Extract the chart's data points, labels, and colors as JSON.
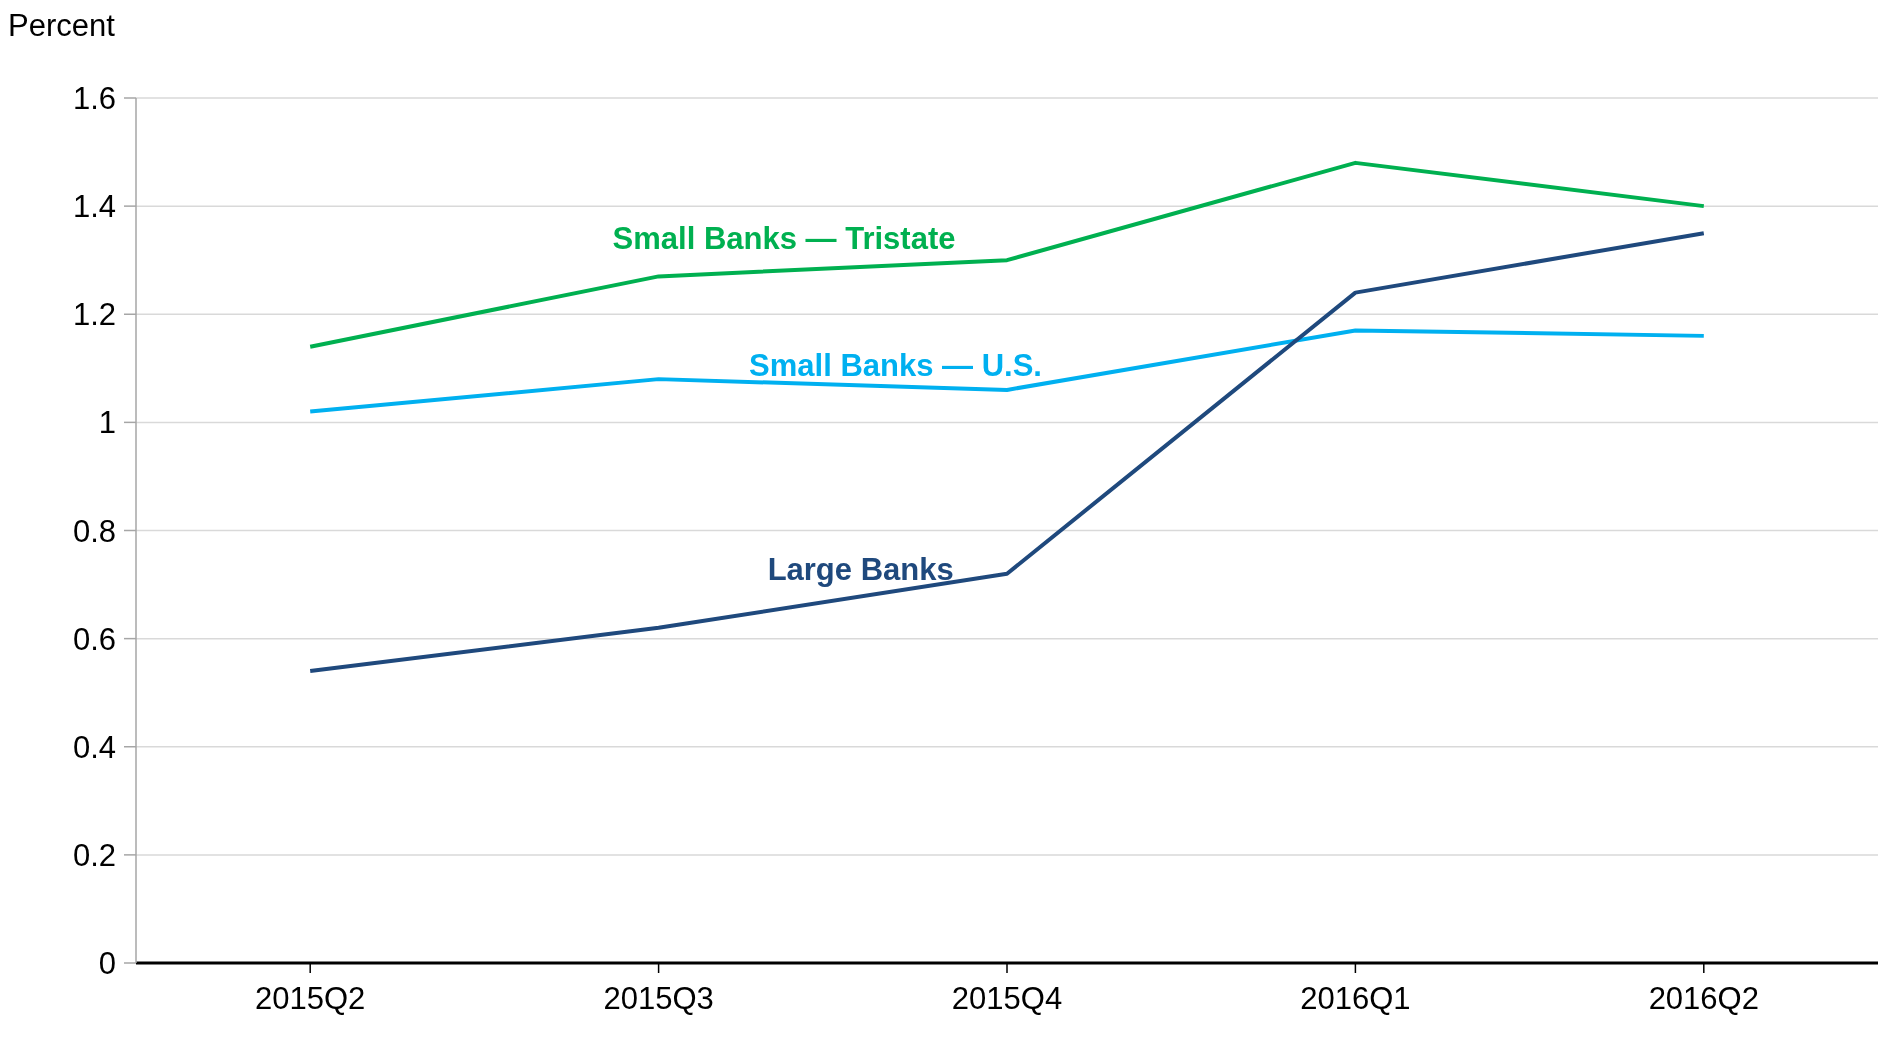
{
  "chart_data": {
    "type": "line",
    "ylabel": "Percent",
    "categories": [
      "2015Q2",
      "2015Q3",
      "2015Q4",
      "2016Q1",
      "2016Q2"
    ],
    "series": [
      {
        "name": "Small Banks — Tristate",
        "color": "#00b050",
        "values": [
          1.14,
          1.27,
          1.3,
          1.48,
          1.4
        ]
      },
      {
        "name": "Small Banks — U.S.",
        "color": "#00b0f0",
        "values": [
          1.02,
          1.08,
          1.06,
          1.17,
          1.16
        ]
      },
      {
        "name": "Large Banks",
        "color": "#1f497d",
        "values": [
          0.54,
          0.62,
          0.72,
          1.24,
          1.35
        ]
      }
    ],
    "ylim": [
      0,
      1.6
    ],
    "yticks": [
      0,
      0.2,
      0.4,
      0.6,
      0.8,
      1,
      1.2,
      1.4,
      1.6
    ],
    "grid": "y",
    "legend": false,
    "marker": "none",
    "line_style": "solid"
  }
}
